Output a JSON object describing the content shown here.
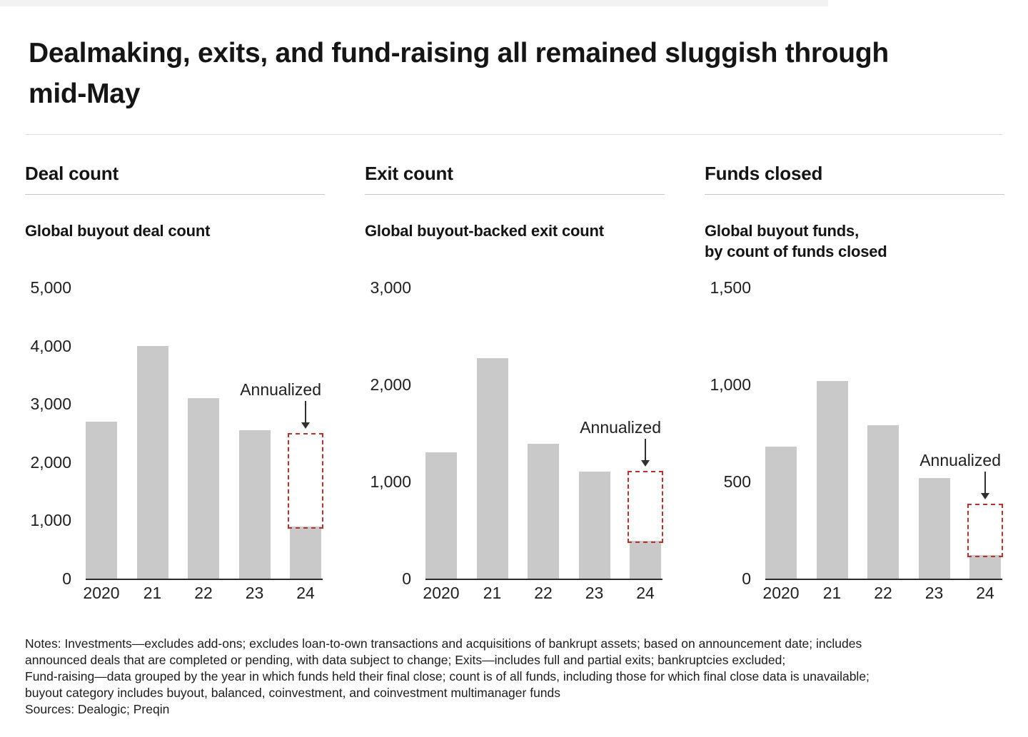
{
  "title": "Dealmaking, exits, and fund-raising all remained sluggish through\nmid-May",
  "chart_data": [
    {
      "type": "bar",
      "section": "Deal count",
      "title": "Global buyout deal count",
      "categories": [
        "2020",
        "21",
        "22",
        "23",
        "24"
      ],
      "values": [
        2700,
        4000,
        3100,
        2550,
        900
      ],
      "annualized_value": 2500,
      "annotation": "Annualized",
      "ylim": [
        0,
        5000
      ],
      "yticks": [
        0,
        1000,
        2000,
        3000,
        4000,
        5000
      ],
      "grid": false,
      "bar_color": "#c9c9c9",
      "annualized_outline_color": "#b5322d"
    },
    {
      "type": "bar",
      "section": "Exit count",
      "title": "Global buyout-backed exit count",
      "categories": [
        "2020",
        "21",
        "22",
        "23",
        "24"
      ],
      "values": [
        1300,
        2270,
        1390,
        1100,
        390
      ],
      "annualized_value": 1110,
      "annotation": "Annualized",
      "ylim": [
        0,
        3000
      ],
      "yticks": [
        0,
        1000,
        2000,
        3000
      ],
      "grid": false,
      "bar_color": "#c9c9c9",
      "annualized_outline_color": "#b5322d"
    },
    {
      "type": "bar",
      "section": "Funds closed",
      "title": "Global buyout funds,\nby count of funds closed",
      "categories": [
        "2020",
        "21",
        "22",
        "23",
        "24"
      ],
      "values": [
        680,
        1020,
        790,
        520,
        120
      ],
      "annualized_value": 385,
      "annotation": "Annualized",
      "ylim": [
        0,
        1500
      ],
      "yticks": [
        0,
        500,
        1000,
        1500
      ],
      "grid": false,
      "bar_color": "#c9c9c9",
      "annualized_outline_color": "#b5322d"
    }
  ],
  "notes": "Notes: Investments—excludes add-ons; excludes loan-to-own transactions and acquisitions of bankrupt assets; based on announcement date; includes\nannounced deals that are completed or pending, with data subject to change; Exits—includes full and partial exits; bankruptcies excluded;\nFund-raising—data grouped by the year in which funds held their final close; count is of all funds, including those for which final close data is unavailable;\nbuyout category includes buyout, balanced, coinvestment, and coinvestment multimanager funds",
  "sources": "Sources: Dealogic; Preqin"
}
